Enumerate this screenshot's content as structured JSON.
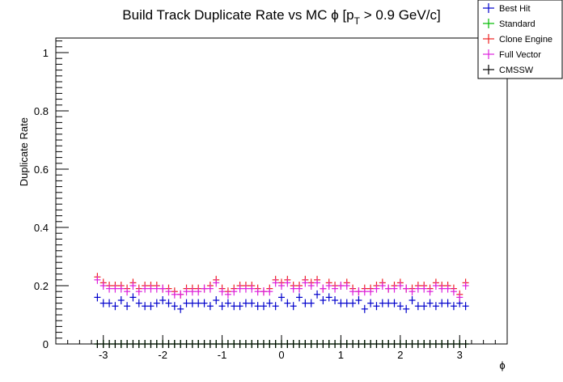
{
  "chart_data": {
    "type": "scatter",
    "title_main": "Build Track Duplicate Rate vs MC ϕ [p",
    "title_sub": "T",
    "title_tail": " > 0.9 GeV/c]",
    "xlabel": "ϕ",
    "ylabel": "Duplicate Rate",
    "xlim": [
      -3.8,
      3.8
    ],
    "ylim": [
      0,
      1.05
    ],
    "xticks": [
      -3,
      -2,
      -1,
      0,
      1,
      2,
      3
    ],
    "xtick_labels": [
      "-3",
      "-2",
      "-1",
      "0",
      "1",
      "2",
      "3"
    ],
    "yticks": [
      0,
      0.2,
      0.4,
      0.6,
      0.8,
      1
    ],
    "ytick_labels": [
      "0",
      "0.2",
      "0.4",
      "0.6",
      "0.8",
      "1"
    ],
    "legend": {
      "placement": "top-right"
    },
    "x": [
      -3.1,
      -3.0,
      -2.9,
      -2.8,
      -2.7,
      -2.6,
      -2.5,
      -2.4,
      -2.3,
      -2.2,
      -2.1,
      -2.0,
      -1.9,
      -1.8,
      -1.7,
      -1.6,
      -1.5,
      -1.4,
      -1.3,
      -1.2,
      -1.1,
      -1.0,
      -0.9,
      -0.8,
      -0.7,
      -0.6,
      -0.5,
      -0.4,
      -0.3,
      -0.2,
      -0.1,
      0.0,
      0.1,
      0.2,
      0.3,
      0.4,
      0.5,
      0.6,
      0.7,
      0.8,
      0.9,
      1.0,
      1.1,
      1.2,
      1.3,
      1.4,
      1.5,
      1.6,
      1.7,
      1.8,
      1.9,
      2.0,
      2.1,
      2.2,
      2.3,
      2.4,
      2.5,
      2.6,
      2.7,
      2.8,
      2.9,
      3.0,
      3.1
    ],
    "series": [
      {
        "name": "Best Hit",
        "color": "#0000cc",
        "values": [
          0.16,
          0.14,
          0.14,
          0.13,
          0.15,
          0.13,
          0.16,
          0.14,
          0.13,
          0.13,
          0.14,
          0.15,
          0.14,
          0.13,
          0.12,
          0.14,
          0.14,
          0.14,
          0.14,
          0.13,
          0.15,
          0.13,
          0.14,
          0.13,
          0.13,
          0.14,
          0.14,
          0.13,
          0.13,
          0.14,
          0.13,
          0.16,
          0.14,
          0.13,
          0.16,
          0.14,
          0.14,
          0.17,
          0.15,
          0.16,
          0.15,
          0.14,
          0.14,
          0.14,
          0.15,
          0.12,
          0.14,
          0.13,
          0.14,
          0.14,
          0.14,
          0.13,
          0.12,
          0.15,
          0.13,
          0.13,
          0.14,
          0.13,
          0.14,
          0.14,
          0.13,
          0.14,
          0.13
        ]
      },
      {
        "name": "Standard",
        "color": "#00bb00",
        "values": [
          0.0,
          0.0,
          0.0,
          0.0,
          0.0,
          0.0,
          0.0,
          0.0,
          0.0,
          0.0,
          0.0,
          0.0,
          0.0,
          0.0,
          0.0,
          0.0,
          0.0,
          0.0,
          0.0,
          0.0,
          0.0,
          0.0,
          0.0,
          0.0,
          0.0,
          0.0,
          0.0,
          0.0,
          0.0,
          0.0,
          0.0,
          0.0,
          0.0,
          0.0,
          0.0,
          0.0,
          0.0,
          0.0,
          0.0,
          0.0,
          0.0,
          0.0,
          0.0,
          0.0,
          0.0,
          0.0,
          0.0,
          0.0,
          0.0,
          0.0,
          0.0,
          0.0,
          0.0,
          0.0,
          0.0,
          0.0,
          0.0,
          0.0,
          0.0,
          0.0,
          0.0,
          0.0,
          0.0
        ]
      },
      {
        "name": "Clone Engine",
        "color": "#ee2222",
        "values": [
          0.23,
          0.21,
          0.2,
          0.2,
          0.2,
          0.19,
          0.21,
          0.19,
          0.2,
          0.2,
          0.2,
          0.19,
          0.19,
          0.18,
          0.17,
          0.19,
          0.19,
          0.19,
          0.19,
          0.2,
          0.22,
          0.19,
          0.18,
          0.19,
          0.2,
          0.2,
          0.2,
          0.19,
          0.18,
          0.19,
          0.22,
          0.21,
          0.22,
          0.2,
          0.2,
          0.22,
          0.21,
          0.22,
          0.19,
          0.21,
          0.2,
          0.2,
          0.21,
          0.19,
          0.18,
          0.19,
          0.19,
          0.2,
          0.21,
          0.19,
          0.2,
          0.21,
          0.19,
          0.19,
          0.2,
          0.2,
          0.19,
          0.21,
          0.2,
          0.2,
          0.19,
          0.17,
          0.21
        ]
      },
      {
        "name": "Full Vector",
        "color": "#dd22dd",
        "values": [
          0.22,
          0.2,
          0.19,
          0.19,
          0.19,
          0.18,
          0.2,
          0.18,
          0.19,
          0.19,
          0.19,
          0.19,
          0.18,
          0.17,
          0.17,
          0.18,
          0.18,
          0.18,
          0.19,
          0.19,
          0.21,
          0.18,
          0.17,
          0.18,
          0.19,
          0.19,
          0.19,
          0.18,
          0.18,
          0.18,
          0.21,
          0.2,
          0.21,
          0.19,
          0.19,
          0.21,
          0.2,
          0.21,
          0.19,
          0.2,
          0.19,
          0.2,
          0.2,
          0.18,
          0.18,
          0.18,
          0.18,
          0.19,
          0.2,
          0.19,
          0.19,
          0.2,
          0.19,
          0.18,
          0.19,
          0.19,
          0.18,
          0.2,
          0.19,
          0.19,
          0.18,
          0.16,
          0.2
        ]
      },
      {
        "name": "CMSSW",
        "color": "#000000",
        "values": [
          0.0,
          0.0,
          0.0,
          0.0,
          0.0,
          0.0,
          0.0,
          0.0,
          0.0,
          0.0,
          0.0,
          0.0,
          0.0,
          0.0,
          0.0,
          0.0,
          0.0,
          0.0,
          0.0,
          0.0,
          0.0,
          0.0,
          0.0,
          0.0,
          0.0,
          0.0,
          0.0,
          0.0,
          0.0,
          0.0,
          0.0,
          0.0,
          0.0,
          0.0,
          0.0,
          0.0,
          0.0,
          0.0,
          0.0,
          0.0,
          0.0,
          0.0,
          0.0,
          0.0,
          0.0,
          0.0,
          0.0,
          0.0,
          0.0,
          0.0,
          0.0,
          0.0,
          0.0,
          0.0,
          0.0,
          0.0,
          0.0,
          0.0,
          0.0,
          0.0,
          0.0,
          0.0,
          0.0
        ]
      }
    ]
  }
}
